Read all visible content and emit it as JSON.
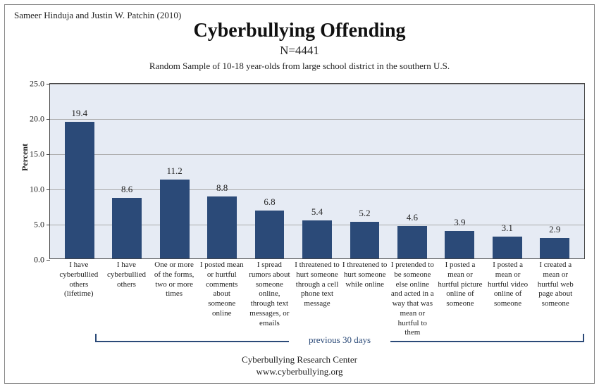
{
  "attribution": "Sameer Hinduja and Justin W. Patchin (2010)",
  "title": "Cyberbullying Offending",
  "n_label": "N=4441",
  "sample_desc": "Random Sample of 10-18 year-olds from large school district in the southern U.S.",
  "y_axis_title": "Percent",
  "bracket_label": "previous 30 days",
  "footer_line1": "Cyberbullying Research Center",
  "footer_line2": "www.cyberbullying.org",
  "chart": {
    "type": "bar",
    "ylim": [
      0,
      25
    ],
    "ytick_step": 5,
    "y_ticks": [
      "0.0",
      "5.0",
      "10.0",
      "15.0",
      "20.0",
      "25.0"
    ],
    "plot_bg_color": "#e6ebf4",
    "grid_color": "#aaaaaa",
    "bar_color": "#2b4a78",
    "border_color": "#444444",
    "bracket_color": "#2b4a78",
    "categories": [
      "I have cyberbullied others (lifetime)",
      "I have cyberbullied others",
      "One or more of the forms, two or more times",
      "I posted mean or hurtful comments about someone online",
      "I spread rumors about someone online, through text messages, or emails",
      "I threatened to hurt someone through a cell phone text message",
      "I threatened to hurt someone while online",
      "I pretended to be someone else online and acted in a way that was mean or hurtful to them",
      "I posted a mean or hurtful picture online of someone",
      "I posted a mean or hurtful video online of someone",
      "I created a mean or hurtful web page about someone"
    ],
    "values": [
      19.4,
      8.6,
      11.2,
      8.8,
      6.8,
      5.4,
      5.2,
      4.6,
      3.9,
      3.1,
      2.9
    ]
  }
}
